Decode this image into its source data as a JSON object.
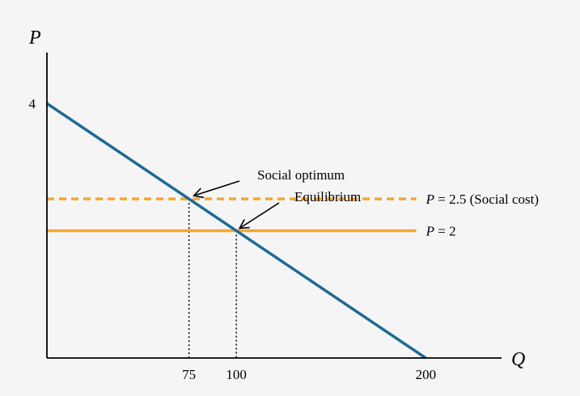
{
  "chart_data": {
    "type": "line",
    "title": "",
    "xlabel": "Q",
    "ylabel": "P",
    "xlim": [
      0,
      240
    ],
    "ylim": [
      0,
      4.8
    ],
    "x_ticks": [
      {
        "value": 75,
        "label": "75"
      },
      {
        "value": 100,
        "label": "100"
      },
      {
        "value": 200,
        "label": "200"
      }
    ],
    "y_ticks": [
      {
        "value": 4,
        "label": "4"
      }
    ],
    "grid": false,
    "series": [
      {
        "style": "solid",
        "color": "#1d6a96",
        "x": [
          0,
          200
        ],
        "y": [
          4,
          0
        ]
      },
      {
        "style": "dashed",
        "color": "#f4a733",
        "x": [
          0,
          195
        ],
        "y": [
          2.5,
          2.5
        ]
      },
      {
        "style": "solid",
        "color": "#f4a733",
        "x": [
          0,
          195
        ],
        "y": [
          2,
          2
        ]
      }
    ],
    "line_labels": [
      {
        "var": "P",
        "text": " = 2.5 (Social cost)",
        "y": 2.5
      },
      {
        "var": "P",
        "text": " = 2",
        "y": 2
      }
    ],
    "annotations": [
      {
        "text": "Social optimum",
        "x": 75,
        "y": 2.5
      },
      {
        "text": "Equilibrium",
        "x": 100,
        "y": 2
      }
    ],
    "guides": [
      {
        "x": 75,
        "y": 2.5
      },
      {
        "x": 100,
        "y": 2
      }
    ]
  },
  "colors": {
    "demand": "#1d6a96",
    "price": "#f4a733",
    "axis": "#000000",
    "background": "#f5f5f5"
  }
}
